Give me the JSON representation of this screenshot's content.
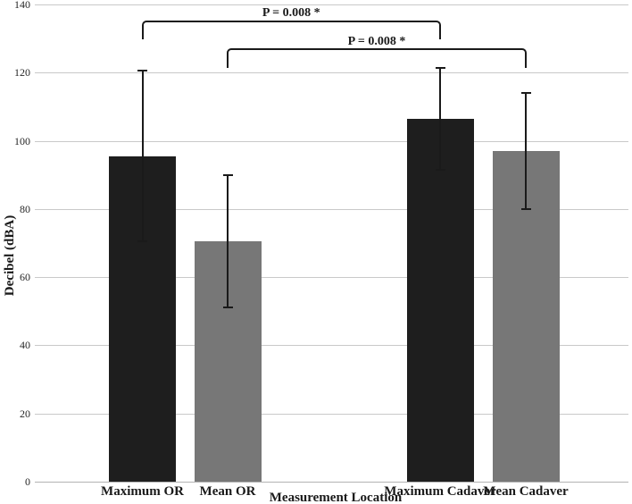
{
  "chart_data": {
    "type": "bar",
    "title": "",
    "xlabel": "Measurement Location",
    "ylabel": "Decibel (dBA)",
    "ylim": [
      0,
      140
    ],
    "yticks": [
      0,
      20,
      40,
      60,
      80,
      100,
      120,
      140
    ],
    "grid": true,
    "legend": "none",
    "categories": [
      "Maximum OR",
      "Mean OR",
      "Maximum Cadaver",
      "Mean Cadaver"
    ],
    "values": [
      95.5,
      70.5,
      106.5,
      97
    ],
    "error_plus": [
      25,
      19.5,
      15,
      17
    ],
    "error_minus": [
      25,
      19.5,
      15,
      17
    ],
    "bar_colors": [
      "#1e1e1e",
      "#777777",
      "#1e1e1e",
      "#777777"
    ],
    "grid_color": "#c9c9c9",
    "annotation_color": "#1a1a1a",
    "annotations": [
      {
        "label": "P = 0.008 *",
        "from_index": 0,
        "to_index": 2
      },
      {
        "label": "P = 0.008 *",
        "from_index": 1,
        "to_index": 3
      }
    ]
  }
}
